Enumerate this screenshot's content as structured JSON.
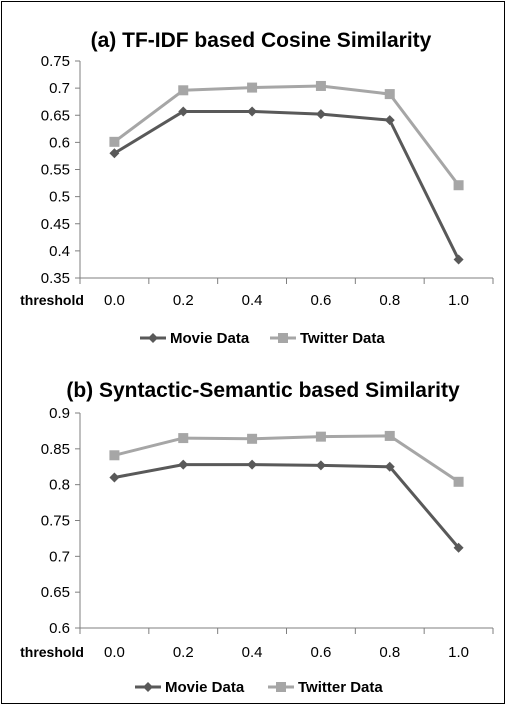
{
  "chart_data": [
    {
      "type": "line",
      "title": "(a) TF-IDF based Cosine Similarity",
      "xlabel": "threshold",
      "categories": [
        "0.0",
        "0.2",
        "0.4",
        "0.6",
        "0.8",
        "1.0"
      ],
      "ylim": [
        0.35,
        0.75
      ],
      "yticks": [
        "0.75",
        "0.7",
        "0.65",
        "0.6",
        "0.55",
        "0.5",
        "0.45",
        "0.4",
        "0.35"
      ],
      "grid": false,
      "legend": "bottom",
      "series": [
        {
          "name": "Movie Data",
          "marker": "diamond",
          "color": "#595959",
          "values": [
            0.58,
            0.657,
            0.657,
            0.652,
            0.641,
            0.384
          ]
        },
        {
          "name": "Twitter Data",
          "marker": "square",
          "color": "#a6a6a6",
          "values": [
            0.601,
            0.696,
            0.701,
            0.704,
            0.689,
            0.521
          ]
        }
      ]
    },
    {
      "type": "line",
      "title": "(b) Syntactic-Semantic based Similarity",
      "xlabel": "threshold",
      "categories": [
        "0.0",
        "0.2",
        "0.4",
        "0.6",
        "0.8",
        "1.0"
      ],
      "ylim": [
        0.6,
        0.9
      ],
      "yticks": [
        "0.9",
        "0.85",
        "0.8",
        "0.75",
        "0.7",
        "0.65",
        "0.6"
      ],
      "grid": false,
      "legend": "bottom",
      "series": [
        {
          "name": "Movie Data",
          "marker": "diamond",
          "color": "#595959",
          "values": [
            0.81,
            0.828,
            0.828,
            0.827,
            0.825,
            0.712
          ]
        },
        {
          "name": "Twitter Data",
          "marker": "square",
          "color": "#a6a6a6",
          "values": [
            0.841,
            0.865,
            0.864,
            0.867,
            0.868,
            0.804
          ]
        }
      ]
    }
  ]
}
